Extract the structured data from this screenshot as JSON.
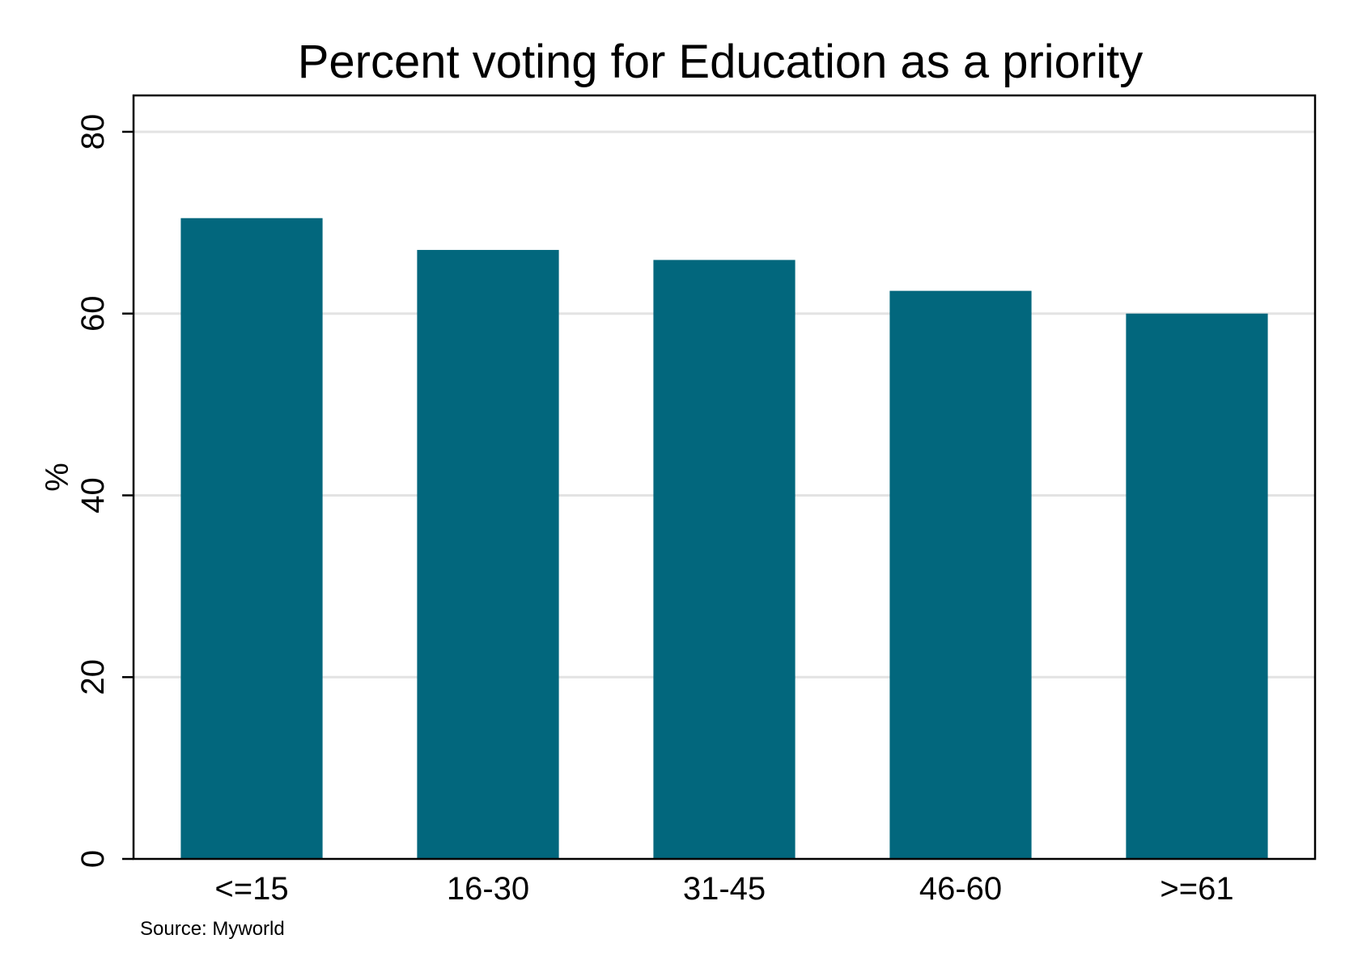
{
  "chart_data": {
    "type": "bar",
    "title": "Percent voting for Education as a priority",
    "xlabel": "",
    "ylabel": "%",
    "categories": [
      "<=15",
      "16-30",
      "31-45",
      "46-60",
      ">=61"
    ],
    "values": [
      70.5,
      67.0,
      65.9,
      62.5,
      60.0
    ],
    "ylim": [
      0,
      84
    ],
    "yticks": [
      0,
      20,
      40,
      60,
      80
    ],
    "ytick_labels": [
      "0",
      "20",
      "40",
      "60",
      "80"
    ],
    "grid": true,
    "legend": "none",
    "colors": {
      "bar": "#02677d",
      "grid": "#e3e3e3",
      "frame": "#000000"
    }
  },
  "note": "Source: Myworld"
}
